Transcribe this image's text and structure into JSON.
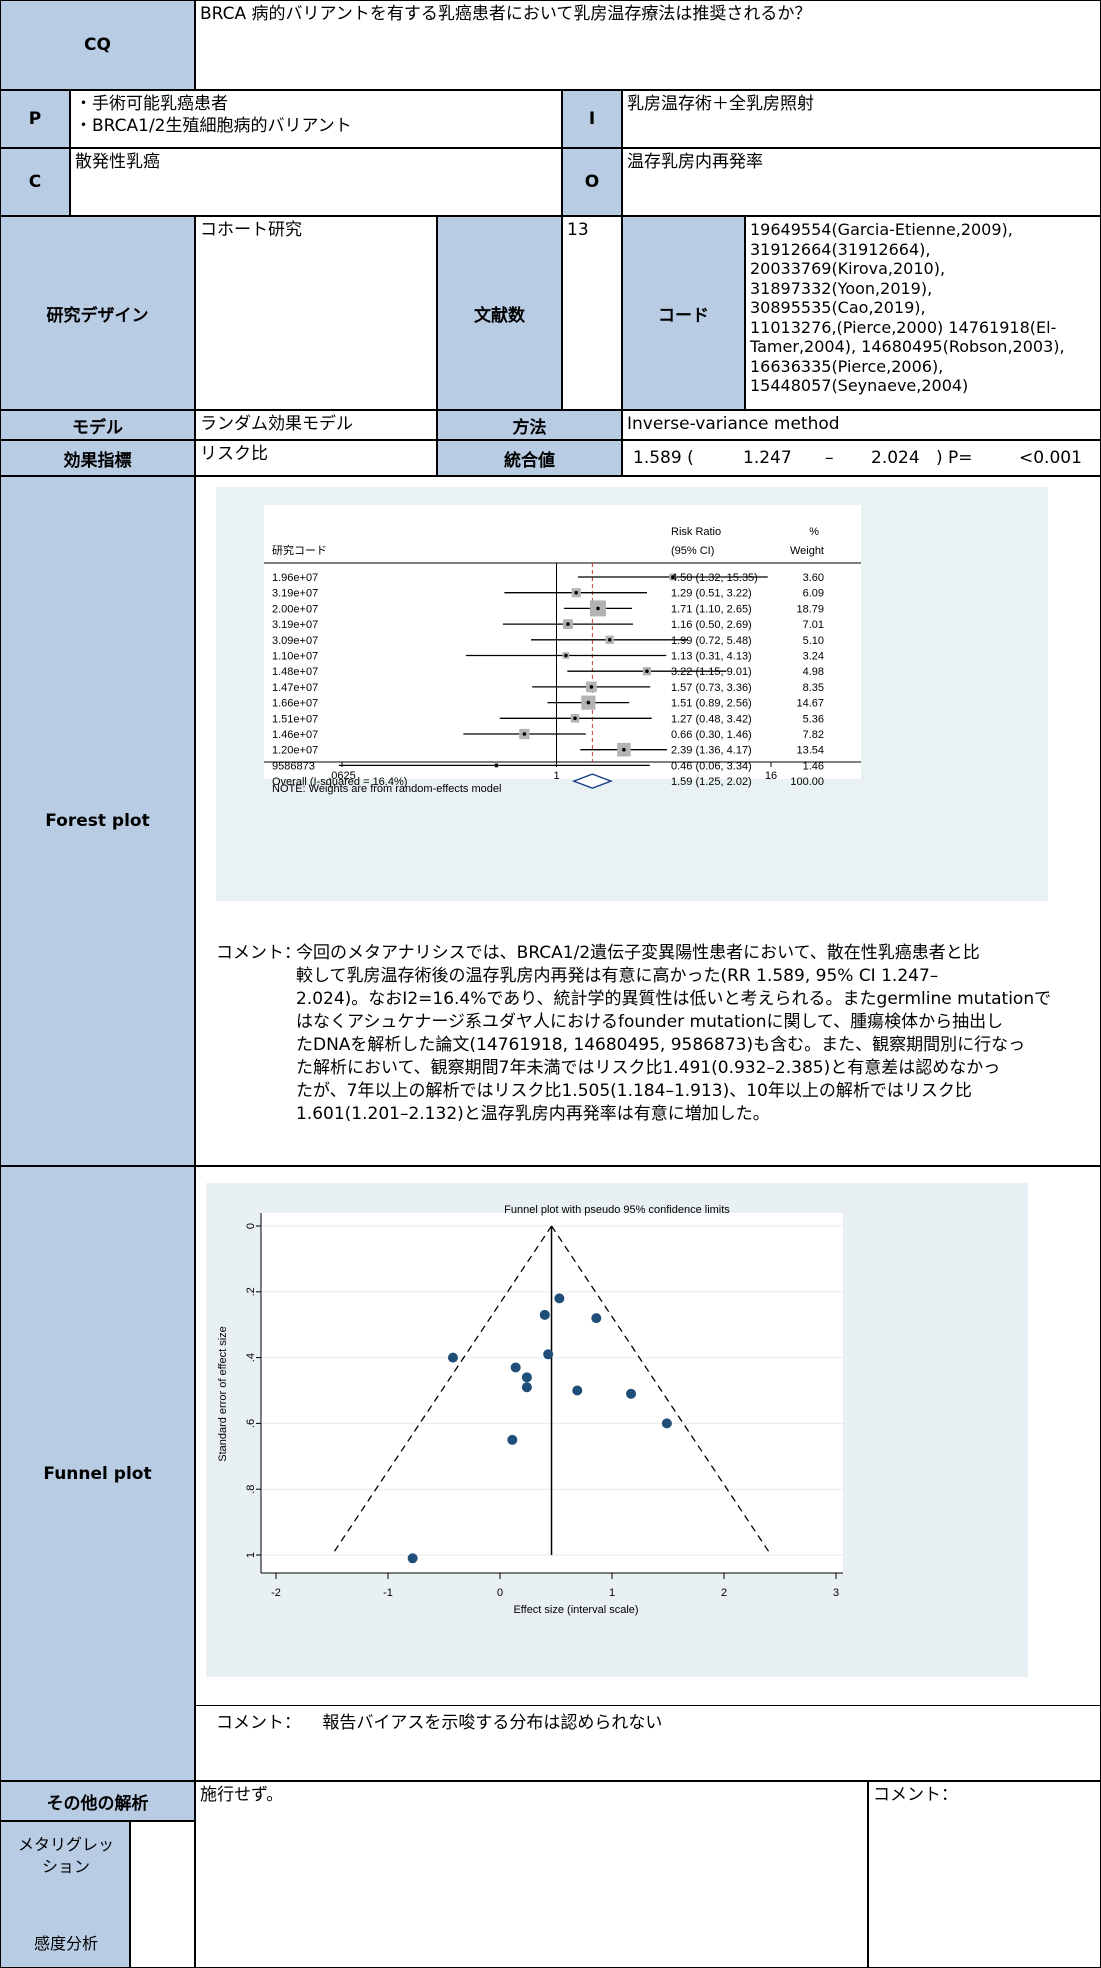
{
  "cq": {
    "label": "CQ",
    "text": "BRCA 病的バリアントを有する乳癌患者において乳房温存療法は推奨されるか？"
  },
  "pico": {
    "p_label": "P",
    "p_lines": [
      "・手術可能乳癌患者",
      "・BRCA1/2生殖細胞病的バリアント"
    ],
    "i_label": "I",
    "i_text": "乳房温存術＋全乳房照射",
    "c_label": "C",
    "c_text": "散発性乳癌",
    "o_label": "O",
    "o_text": "温存乳房内再発率"
  },
  "design": {
    "label": "研究デザイン",
    "value": "コホート研究",
    "count_label": "文献数",
    "count": "13",
    "code_label": "コード",
    "codes_lines": [
      "19649554(Garcia-Etienne,2009),",
      "31912664(31912664),",
      "20033769(Kirova,2010),",
      "31897332(Yoon,2019),",
      "30895535(Cao,2019),",
      "11013276,(Pierce,2000) 14761918(El-",
      "Tamer,2004), 14680495(Robson,2003),",
      "16636335(Pierce,2006),",
      "15448057(Seynaeve,2004)"
    ]
  },
  "model": {
    "label": "モデル",
    "value": "ランダム効果モデル",
    "method_label": "方法",
    "method_value": "Inverse-variance method"
  },
  "effect": {
    "label": "効果指標",
    "value": "リスク比",
    "pooled_label": "統合値",
    "estimate": "1.589 (",
    "lower": "1.247",
    "dash": "–",
    "upper": "2.024",
    "p_label": ") P=",
    "p_value": "<0.001"
  },
  "forest": {
    "section_label": "Forest plot",
    "col_study": "研究コード",
    "col_rr": "Risk Ratio",
    "col_ci": "(95% CI)",
    "col_pct": "%",
    "col_weight": "Weight",
    "note": "NOTE: Weights are from random-effects model",
    "ticks": [
      {
        "v": 0.0625,
        "label": ".0625"
      },
      {
        "v": 1,
        "label": "1"
      },
      {
        "v": 16,
        "label": "16"
      }
    ]
  },
  "chart_data": {
    "type": "forest",
    "xscale": "log",
    "xlim": [
      0.0625,
      16
    ],
    "rows": [
      {
        "study": "1.96e+07",
        "rr": 4.5,
        "lo": 1.32,
        "hi": 15.35,
        "text": "4.50 (1.32, 15.35)",
        "weight": "3.60"
      },
      {
        "study": "3.19e+07",
        "rr": 1.29,
        "lo": 0.51,
        "hi": 3.22,
        "text": "1.29 (0.51, 3.22)",
        "weight": "6.09"
      },
      {
        "study": "2.00e+07",
        "rr": 1.71,
        "lo": 1.1,
        "hi": 2.65,
        "text": "1.71 (1.10, 2.65)",
        "weight": "18.79"
      },
      {
        "study": "3.19e+07",
        "rr": 1.16,
        "lo": 0.5,
        "hi": 2.69,
        "text": "1.16 (0.50, 2.69)",
        "weight": "7.01"
      },
      {
        "study": "3.09e+07",
        "rr": 1.99,
        "lo": 0.72,
        "hi": 5.48,
        "text": "1.99 (0.72, 5.48)",
        "weight": "5.10"
      },
      {
        "study": "1.10e+07",
        "rr": 1.13,
        "lo": 0.31,
        "hi": 4.13,
        "text": "1.13 (0.31, 4.13)",
        "weight": "3.24"
      },
      {
        "study": "1.48e+07",
        "rr": 3.22,
        "lo": 1.15,
        "hi": 9.01,
        "text": "3.22 (1.15, 9.01)",
        "weight": "4.98"
      },
      {
        "study": "1.47e+07",
        "rr": 1.57,
        "lo": 0.73,
        "hi": 3.36,
        "text": "1.57 (0.73, 3.36)",
        "weight": "8.35"
      },
      {
        "study": "1.66e+07",
        "rr": 1.51,
        "lo": 0.89,
        "hi": 2.56,
        "text": "1.51 (0.89, 2.56)",
        "weight": "14.67"
      },
      {
        "study": "1.51e+07",
        "rr": 1.27,
        "lo": 0.48,
        "hi": 3.42,
        "text": "1.27 (0.48, 3.42)",
        "weight": "5.36"
      },
      {
        "study": "1.46e+07",
        "rr": 0.66,
        "lo": 0.3,
        "hi": 1.46,
        "text": "0.66 (0.30, 1.46)",
        "weight": "7.82"
      },
      {
        "study": "1.20e+07",
        "rr": 2.39,
        "lo": 1.36,
        "hi": 4.17,
        "text": "2.39 (1.36, 4.17)",
        "weight": "13.54"
      },
      {
        "study": "9586873",
        "rr": 0.46,
        "lo": 0.06,
        "hi": 3.34,
        "text": "0.46 (0.06, 3.34)",
        "weight": "1.46"
      }
    ],
    "overall": {
      "study": "Overall (I-squared = 16.4%)",
      "rr": 1.59,
      "lo": 1.25,
      "hi": 2.02,
      "text": "1.59 (1.25, 2.02)",
      "weight": "100.00"
    },
    "funnel": {
      "title": "Funnel plot with pseudo 95% confidence limits",
      "xlabel": "Effect size (interval scale)",
      "ylabel": "Standard error of effect size",
      "xlim": [
        -2,
        3
      ],
      "ylim": [
        0,
        1
      ],
      "yreversed": true,
      "center": 0.46,
      "xticks": [
        -2,
        -1,
        0,
        1,
        2,
        3
      ],
      "yticks": [
        {
          "v": 0,
          "label": "0"
        },
        {
          "v": 0.2,
          "label": ".2"
        },
        {
          "v": 0.4,
          "label": ".4"
        },
        {
          "v": 0.6,
          "label": ".6"
        },
        {
          "v": 0.8,
          "label": ".8"
        },
        {
          "v": 1,
          "label": "1"
        }
      ],
      "points": [
        [
          0.53,
          0.22
        ],
        [
          0.4,
          0.27
        ],
        [
          0.86,
          0.28
        ],
        [
          -0.42,
          0.4
        ],
        [
          0.43,
          0.39
        ],
        [
          0.14,
          0.43
        ],
        [
          0.24,
          0.46
        ],
        [
          0.24,
          0.49
        ],
        [
          0.69,
          0.5
        ],
        [
          1.17,
          0.51
        ],
        [
          1.49,
          0.6
        ],
        [
          0.11,
          0.65
        ],
        [
          -0.78,
          1.01
        ]
      ]
    }
  },
  "forest_comment": {
    "label": "コメント：",
    "lines": [
      "今回のメタアナリシスでは、BRCA1/2遺伝子変異陽性患者において、散在性乳癌患者と比",
      "較して乳房温存術後の温存乳房内再発は有意に高かった(RR 1.589, 95% CI 1.247–",
      "2.024)。なおI2=16.4%であり、統計学的異質性は低いと考えられる。またgermline mutationで",
      "はなくアシュケナージ系ユダヤ人におけるfounder mutationに関して、腫瘍検体から抽出し",
      "たDNAを解析した論文(14761918, 14680495, 9586873)も含む。また、観察期間別に行なっ",
      "た解析において、観察期間7年未満ではリスク比1.491(0.932–2.385)と有意差は認めなかっ",
      "たが、7年以上の解析ではリスク比1.505(1.184–1.913)、10年以上の解析ではリスク比",
      "1.601(1.201–2.132)と温存乳房内再発率は有意に増加した。"
    ]
  },
  "funnel_section": {
    "label": "Funnel plot",
    "comment_label": "コメント：",
    "comment_text": "報告バイアスを示唆する分布は認められない"
  },
  "other": {
    "label": "その他の解析",
    "value": "施行せず。",
    "comment_label": "コメント：",
    "meta_label_1": "メタリグレッ",
    "meta_label_2": "ション",
    "sens_label": "感度分析"
  }
}
